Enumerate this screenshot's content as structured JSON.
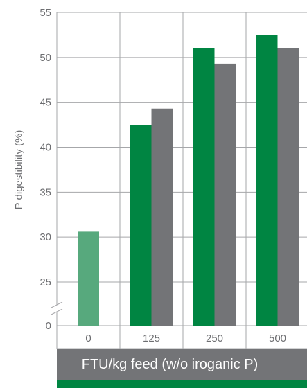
{
  "chart_data": {
    "type": "bar",
    "title": "",
    "xlabel": "FTU/kg feed (w/o iroganic P)",
    "ylabel": "P digestibility (%)",
    "categories": [
      "0",
      "125",
      "250",
      "500"
    ],
    "series": [
      {
        "values": [
          30.6,
          42.5,
          51.0,
          52.5
        ]
      },
      {
        "values": [
          null,
          44.3,
          49.3,
          51.0
        ]
      }
    ],
    "yticks": [
      0,
      25,
      30,
      35,
      40,
      45,
      50,
      55
    ],
    "ylim": [
      25,
      55
    ],
    "axis_break": true,
    "grid": true,
    "colors": {
      "control": "#57a97d",
      "series_1": "#008542",
      "series_2": "#737477",
      "xlabel_band": "#737477",
      "bottom_stripe": "#008542",
      "grid": "#a6a7aa"
    }
  }
}
